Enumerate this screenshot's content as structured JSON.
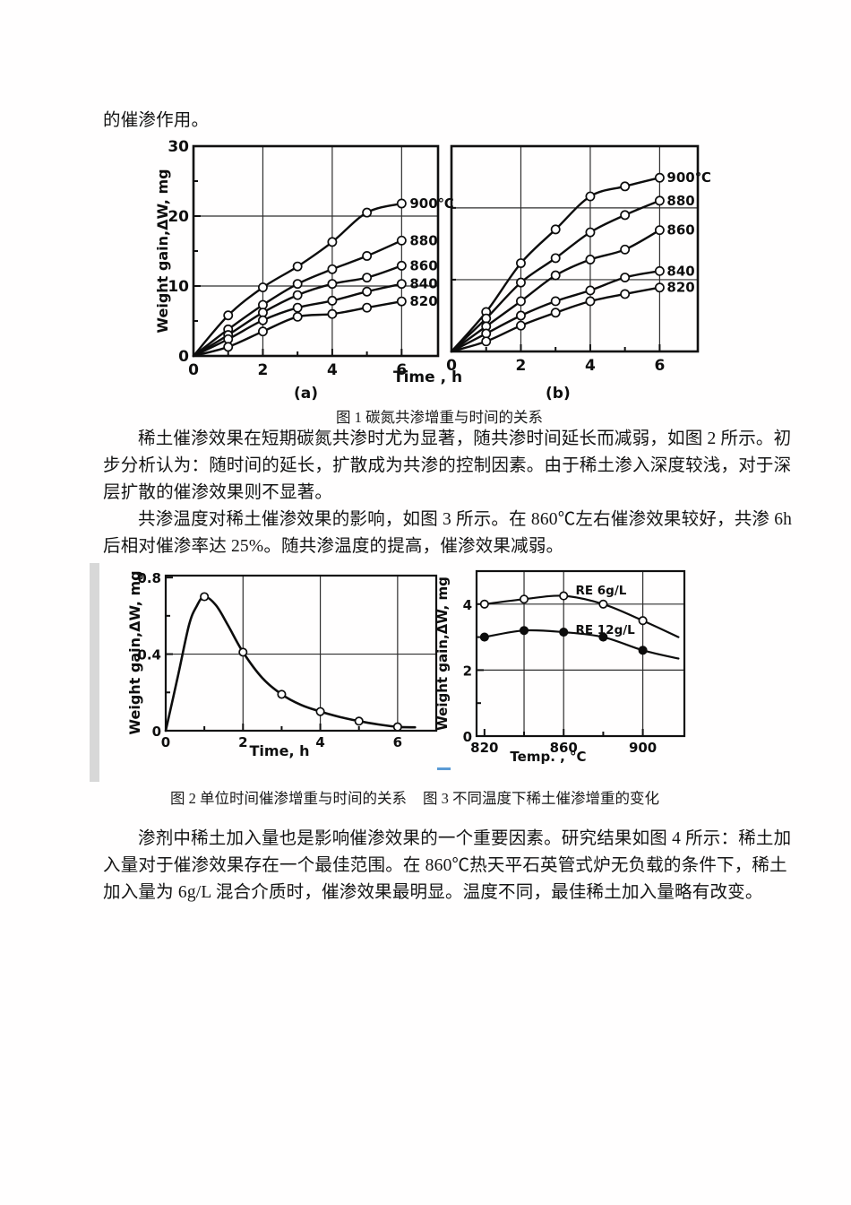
{
  "content": {
    "intro_line": "的催渗作用。",
    "fig1_caption": "图 1  碳氮共渗增重与时间的关系",
    "p1_lines": [
      "稀土催渗效果在短期碳氮共渗时尤为显著，随共渗时间延长而减弱，如图 2 所示。初",
      "步分析认为：随时间的延长，扩散成为共渗的控制因素。由于稀土渗入深度较浅，对于深",
      "层扩散的催渗效果则不显著。"
    ],
    "p2_lines": [
      "共渗温度对稀土催渗效果的影响，如图 3 所示。在 860℃左右催渗效果较好，共渗 6h",
      "后相对催渗率达 25%。随共渗温度的提高，催渗效果减弱。"
    ],
    "fig23_caption_left": "图 2  单位时间催渗增重与时间的关系",
    "fig23_caption_right": "图 3  不同温度下稀土催渗增重的变化",
    "p3_lines": [
      "渗剂中稀土加入量也是影响催渗效果的一个重要因素。研究结果如图 4 所示：稀土加",
      "入量对于催渗效果存在一个最佳范围。在 860℃热天平石英管式炉无负载的条件下，稀土",
      "加入量为 6g/L 混合介质时，催渗效果最明显。温度不同，最佳稀土加入量略有改变。"
    ]
  },
  "chart_data": [
    {
      "id": "fig1a",
      "type": "line",
      "panel": "(a)",
      "title": "碳氮共渗增重与时间的关系 (a)",
      "xlabel": "Time , h",
      "ylabel": "Weight gain,ΔW, mg",
      "xlim": [
        0,
        7.05
      ],
      "ylim": [
        0,
        30
      ],
      "xticks": [
        {
          "v": 0,
          "label": "0"
        },
        {
          "v": 2,
          "label": "2"
        },
        {
          "v": 4,
          "label": "4"
        },
        {
          "v": 6,
          "label": "6"
        }
      ],
      "xticks_minor": [
        1,
        3,
        5
      ],
      "yticks": [
        {
          "v": 0,
          "label": "0"
        },
        {
          "v": 10,
          "label": "10"
        },
        {
          "v": 20,
          "label": "20"
        },
        {
          "v": 30,
          "label": "30"
        }
      ],
      "yticks_minor": [
        5,
        15,
        25
      ],
      "grid_x": [
        2,
        4,
        6
      ],
      "grid_y": [
        10,
        20
      ],
      "x": [
        0,
        1,
        2,
        3,
        4,
        5,
        6
      ],
      "series": [
        {
          "name": "900℃",
          "marker": "open",
          "marker_x": [
            1,
            2,
            3,
            4,
            5,
            6
          ],
          "values": [
            0,
            5.8,
            9.8,
            12.8,
            16.3,
            20.5,
            21.8
          ]
        },
        {
          "name": "880",
          "marker": "open",
          "marker_x": [
            1,
            2,
            3,
            4,
            5,
            6
          ],
          "values": [
            0,
            3.8,
            7.3,
            10.3,
            12.4,
            14.3,
            16.5
          ]
        },
        {
          "name": "860",
          "marker": "open",
          "marker_x": [
            1,
            2,
            3,
            4,
            5,
            6
          ],
          "values": [
            0,
            3.0,
            6.2,
            8.7,
            10.3,
            11.2,
            12.9
          ]
        },
        {
          "name": "840",
          "marker": "open",
          "marker_x": [
            1,
            2,
            3,
            4,
            5,
            6
          ],
          "values": [
            0,
            2.4,
            5.1,
            6.9,
            7.9,
            9.2,
            10.3
          ]
        },
        {
          "name": "820",
          "marker": "open",
          "marker_x": [
            1,
            2,
            3,
            4,
            5,
            6
          ],
          "values": [
            0,
            1.3,
            3.5,
            5.6,
            6.0,
            6.9,
            7.8
          ]
        }
      ]
    },
    {
      "id": "fig1b",
      "type": "line",
      "panel": "(b)",
      "title": "碳氮共渗增重与时间的关系 (b)",
      "xlabel": "",
      "ylabel": "",
      "xlim": [
        0,
        7.1
      ],
      "ylim": [
        0,
        28.6
      ],
      "xticks": [
        {
          "v": 0,
          "label": "0"
        },
        {
          "v": 2,
          "label": "2"
        },
        {
          "v": 4,
          "label": "4"
        },
        {
          "v": 6,
          "label": "6"
        }
      ],
      "xticks_minor": [
        1,
        3,
        5
      ],
      "yticks": [],
      "yticks_minor": [
        10,
        20
      ],
      "grid_x": [
        2,
        4,
        6
      ],
      "grid_y": [
        10,
        20
      ],
      "x": [
        0,
        1,
        2,
        3,
        4,
        5,
        6
      ],
      "series": [
        {
          "name": "900℃",
          "marker": "open",
          "marker_x": [
            1,
            2,
            3,
            4,
            5,
            6
          ],
          "values": [
            0,
            5.5,
            12.3,
            17.0,
            21.6,
            23.0,
            24.2
          ]
        },
        {
          "name": "880",
          "marker": "open",
          "marker_x": [
            1,
            2,
            3,
            4,
            5,
            6
          ],
          "values": [
            0,
            4.6,
            9.6,
            13.0,
            16.6,
            19.0,
            21.0
          ]
        },
        {
          "name": "860",
          "marker": "open",
          "marker_x": [
            1,
            2,
            3,
            4,
            5,
            6
          ],
          "values": [
            0,
            3.5,
            7.0,
            10.6,
            12.8,
            14.2,
            16.9
          ]
        },
        {
          "name": "840",
          "marker": "open",
          "marker_x": [
            1,
            2,
            3,
            4,
            5,
            6
          ],
          "values": [
            0,
            2.5,
            5.0,
            7.0,
            8.5,
            10.3,
            11.2
          ]
        },
        {
          "name": "820",
          "marker": "open",
          "marker_x": [
            1,
            2,
            3,
            4,
            5,
            6
          ],
          "values": [
            0,
            1.4,
            3.6,
            5.4,
            7.0,
            8.0,
            8.9
          ]
        }
      ]
    },
    {
      "id": "fig2",
      "type": "line",
      "title": "单位时间催渗增重与时间的关系",
      "xlabel": "Time, h",
      "ylabel": "Weight gain,ΔW, mg",
      "xlim": [
        0,
        7.0
      ],
      "ylim": [
        0,
        0.81
      ],
      "xticks": [
        {
          "v": 0,
          "label": "0"
        },
        {
          "v": 2,
          "label": "2"
        },
        {
          "v": 4,
          "label": "4"
        },
        {
          "v": 6,
          "label": "6"
        }
      ],
      "xticks_minor": [
        1,
        3,
        5
      ],
      "yticks": [
        {
          "v": 0,
          "label": "0"
        },
        {
          "v": 0.4,
          "label": "0.4"
        },
        {
          "v": 0.8,
          "label": "0.8"
        }
      ],
      "yticks_minor": [
        0.2,
        0.6
      ],
      "grid_x": [
        2,
        4,
        6
      ],
      "grid_y": [
        0.4
      ],
      "x": [
        0,
        1,
        2,
        3,
        4,
        5,
        6
      ],
      "series": [
        {
          "name": "",
          "marker": "open",
          "marker_x": [
            1,
            2,
            3,
            4,
            5,
            6
          ],
          "values": [
            0,
            0.7,
            0.41,
            0.19,
            0.1,
            0.05,
            0.02
          ],
          "curve": [
            [
              0,
              0
            ],
            [
              0.3,
              0.27
            ],
            [
              0.6,
              0.55
            ],
            [
              0.8,
              0.65
            ],
            [
              1,
              0.7
            ],
            [
              1.3,
              0.655
            ],
            [
              1.6,
              0.555
            ],
            [
              2,
              0.41
            ],
            [
              2.5,
              0.275
            ],
            [
              3,
              0.19
            ],
            [
              3.5,
              0.135
            ],
            [
              4,
              0.1
            ],
            [
              4.5,
              0.072
            ],
            [
              5,
              0.05
            ],
            [
              5.5,
              0.033
            ],
            [
              6,
              0.02
            ],
            [
              6.45,
              0.018
            ]
          ]
        }
      ]
    },
    {
      "id": "fig3",
      "type": "line",
      "title": "不同温度下稀土催渗增重的变化",
      "xlabel": "Temp. , °C",
      "ylabel": "Weight gain,ΔW, mg",
      "xlim": [
        816,
        921
      ],
      "ylim": [
        0,
        5.0
      ],
      "xticks": [
        {
          "v": 820,
          "label": "820"
        },
        {
          "v": 860,
          "label": "860"
        },
        {
          "v": 900,
          "label": "900"
        }
      ],
      "xticks_minor": [
        840,
        880
      ],
      "yticks": [
        {
          "v": 0,
          "label": "0"
        },
        {
          "v": 2,
          "label": "2"
        },
        {
          "v": 4,
          "label": "4"
        }
      ],
      "yticks_minor": [
        1,
        3
      ],
      "grid_x": [
        840,
        860,
        900
      ],
      "grid_y": [
        2,
        4
      ],
      "series": [
        {
          "name": "RE 6g/L",
          "marker": "open",
          "x": [
            820,
            840,
            860,
            880,
            900,
            918
          ],
          "marker_x": [
            820,
            840,
            860,
            880,
            900
          ],
          "values": [
            4.0,
            4.15,
            4.25,
            4.0,
            3.5,
            3.0
          ],
          "label_at": [
            866,
            4.3
          ]
        },
        {
          "name": "RE 12g/L",
          "marker": "filled",
          "x": [
            820,
            840,
            860,
            880,
            900,
            918
          ],
          "marker_x": [
            820,
            840,
            860,
            880,
            900
          ],
          "values": [
            3.0,
            3.2,
            3.15,
            3.0,
            2.6,
            2.35
          ],
          "label_at": [
            866,
            3.1
          ]
        }
      ]
    }
  ]
}
